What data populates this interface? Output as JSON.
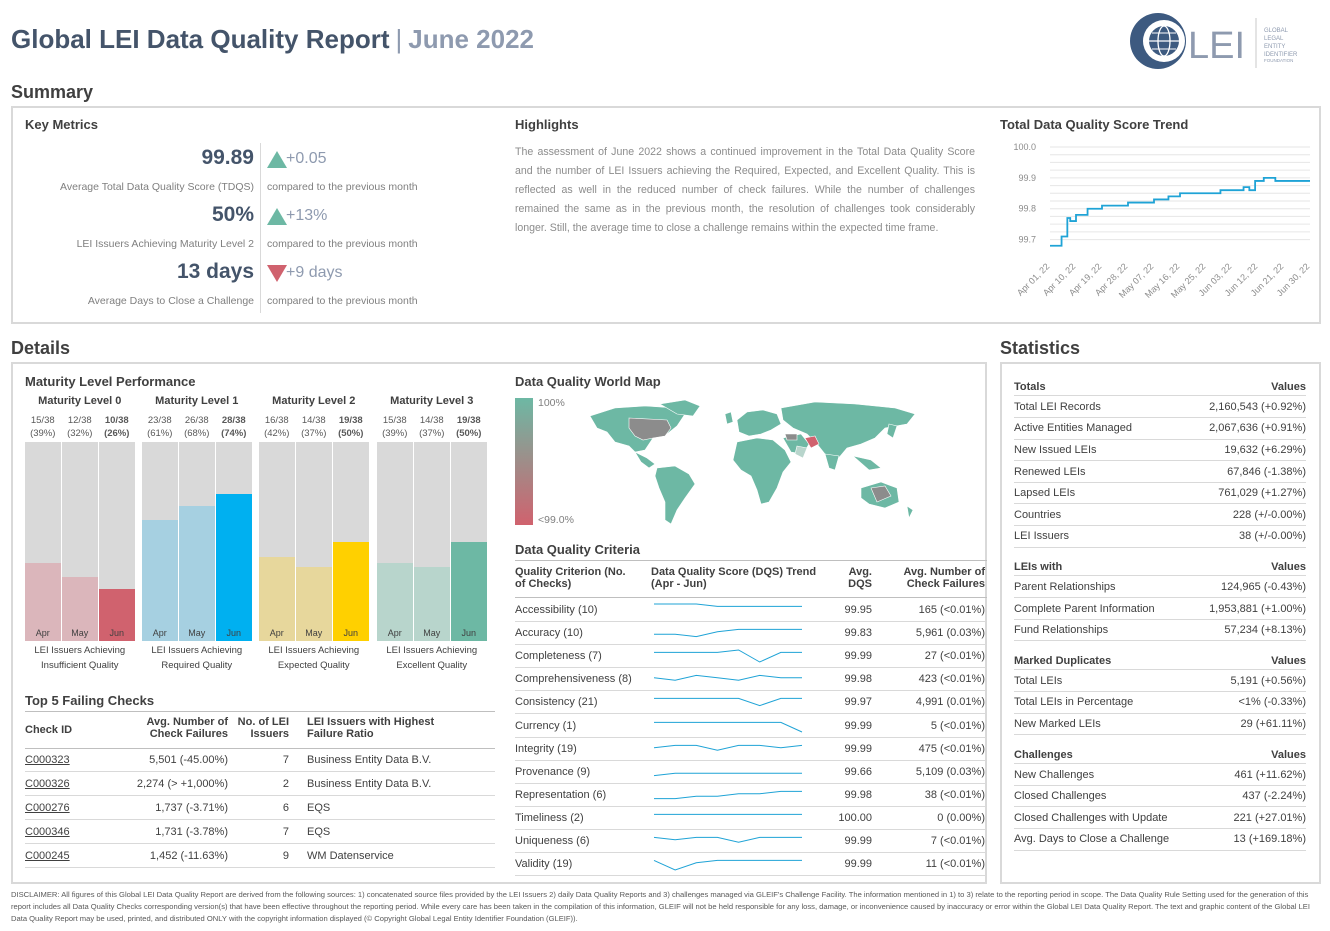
{
  "header": {
    "title": "Global LEI Data Quality Report",
    "separator": "|",
    "month": "June 2022",
    "logo_text": "LEI",
    "logo_small": [
      "GLOBAL",
      "LEGAL",
      "ENTITY",
      "IDENTIFIER",
      "FOUNDATION"
    ]
  },
  "summary": {
    "heading": "Summary",
    "key_metrics": {
      "title": "Key Metrics",
      "items": [
        {
          "value": "99.89",
          "label": "Average Total Data Quality Score (TDQS)",
          "delta": "+0.05",
          "direction": "up",
          "compare": "compared to the previous month"
        },
        {
          "value": "50%",
          "label": "LEI Issuers Achieving Maturity Level 2",
          "delta": "+13%",
          "direction": "up",
          "compare": "compared to the previous month"
        },
        {
          "value": "13 days",
          "label": "Average Days to Close a Challenge",
          "delta": "+9 days",
          "direction": "down",
          "compare": "compared to the previous month"
        }
      ]
    },
    "highlights": {
      "title": "Highlights",
      "text": "The assessment of June 2022 shows a continued improvement in the Total Data Quality Score and the number of LEI Issuers achieving the Required, Expected, and Excellent Quality. This is reflected as well in the reduced number of check failures. While the number of challenges remained the same as in the previous month, the resolution of challenges took considerably longer. Still, the average time to close a challenge remains within the expected time frame."
    },
    "trend": {
      "title": "Total Data Quality Score Trend"
    }
  },
  "details": {
    "heading": "Details",
    "maturity": {
      "title": "Maturity Level Performance",
      "levels": [
        {
          "name": "Maturity Level 0",
          "caption": "LEI Issuers Achieving Insufficient Quality",
          "months": [
            {
              "m": "Apr",
              "frac": "15/38",
              "pct": "(39%)",
              "value": 0.39
            },
            {
              "m": "May",
              "frac": "12/38",
              "pct": "(32%)",
              "value": 0.32
            },
            {
              "m": "Jun",
              "frac": "10/38",
              "pct": "(26%)",
              "value": 0.26
            }
          ]
        },
        {
          "name": "Maturity Level 1",
          "caption": "LEI Issuers Achieving Required Quality",
          "months": [
            {
              "m": "Apr",
              "frac": "23/38",
              "pct": "(61%)",
              "value": 0.61
            },
            {
              "m": "May",
              "frac": "26/38",
              "pct": "(68%)",
              "value": 0.68
            },
            {
              "m": "Jun",
              "frac": "28/38",
              "pct": "(74%)",
              "value": 0.74
            }
          ]
        },
        {
          "name": "Maturity Level 2",
          "caption": "LEI Issuers Achieving Expected Quality",
          "months": [
            {
              "m": "Apr",
              "frac": "16/38",
              "pct": "(42%)",
              "value": 0.42
            },
            {
              "m": "May",
              "frac": "14/38",
              "pct": "(37%)",
              "value": 0.37
            },
            {
              "m": "Jun",
              "frac": "19/38",
              "pct": "(50%)",
              "value": 0.5
            }
          ]
        },
        {
          "name": "Maturity Level 3",
          "caption": "LEI Issuers Achieving Excellent Quality",
          "months": [
            {
              "m": "Apr",
              "frac": "15/38",
              "pct": "(39%)",
              "value": 0.39
            },
            {
              "m": "May",
              "frac": "14/38",
              "pct": "(37%)",
              "value": 0.37
            },
            {
              "m": "Jun",
              "frac": "19/38",
              "pct": "(50%)",
              "value": 0.5
            }
          ]
        }
      ],
      "colors": [
        [
          "#dbb6bb",
          "#dbb6bb",
          "#d0626e"
        ],
        [
          "#a6d0e1",
          "#a6d0e1",
          "#00b0f0"
        ],
        [
          "#e7d79c",
          "#e7d79c",
          "#ffd000"
        ],
        [
          "#b8d5cc",
          "#b8d5cc",
          "#6db8a4"
        ]
      ]
    },
    "failing": {
      "title": "Top 5 Failing Checks",
      "headers": [
        "Check ID",
        "Avg. Number of Check Failures",
        "No. of LEI Issuers",
        "LEI Issuers with Highest Failure Ratio"
      ],
      "rows": [
        {
          "id": "C000323",
          "avg": "5,501 (-45.00%)",
          "n": "7",
          "issuer": "Business Entity Data B.V."
        },
        {
          "id": "C000326",
          "avg": "2,274 (> +1,000%)",
          "n": "2",
          "issuer": "Business Entity Data B.V."
        },
        {
          "id": "C000276",
          "avg": "1,737 (-3.71%)",
          "n": "6",
          "issuer": "EQS"
        },
        {
          "id": "C000346",
          "avg": "1,731 (-3.78%)",
          "n": "7",
          "issuer": "EQS"
        },
        {
          "id": "C000245",
          "avg": "1,452 (-11.63%)",
          "n": "9",
          "issuer": "WM Datenservice"
        }
      ]
    },
    "worldmap": {
      "title": "Data Quality World Map",
      "legend_top": "100%",
      "legend_bottom": "<99.0%"
    },
    "criteria": {
      "title": "Data Quality Criteria",
      "headers": [
        "Quality Criterion (No. of Checks)",
        "Data Quality Score (DQS) Trend (Apr - Jun)",
        "Avg. DQS",
        "Avg. Number of Check Failures"
      ],
      "rows": [
        {
          "name": "Accessibility (10)",
          "dqs": "99.95",
          "fail": "165 (<0.01%)"
        },
        {
          "name": "Accuracy (10)",
          "dqs": "99.83",
          "fail": "5,961 (0.03%)"
        },
        {
          "name": "Completeness (7)",
          "dqs": "99.99",
          "fail": "27 (<0.01%)"
        },
        {
          "name": "Comprehensiveness (8)",
          "dqs": "99.98",
          "fail": "423 (<0.01%)"
        },
        {
          "name": "Consistency (21)",
          "dqs": "99.97",
          "fail": "4,991 (0.01%)"
        },
        {
          "name": "Currency (1)",
          "dqs": "99.99",
          "fail": "5 (<0.01%)"
        },
        {
          "name": "Integrity (19)",
          "dqs": "99.99",
          "fail": "475 (<0.01%)"
        },
        {
          "name": "Provenance (9)",
          "dqs": "99.66",
          "fail": "5,109 (0.03%)"
        },
        {
          "name": "Representation (6)",
          "dqs": "99.98",
          "fail": "38 (<0.01%)"
        },
        {
          "name": "Timeliness (2)",
          "dqs": "100.00",
          "fail": "0 (0.00%)"
        },
        {
          "name": "Uniqueness (6)",
          "dqs": "99.99",
          "fail": "7 (<0.01%)"
        },
        {
          "name": "Validity (19)",
          "dqs": "99.99",
          "fail": "11 (<0.01%)"
        }
      ]
    }
  },
  "statistics": {
    "heading": "Statistics",
    "groups": [
      {
        "head": "Totals",
        "values_head": "Values",
        "rows": [
          [
            "Total LEI Records",
            "2,160,543 (+0.92%)"
          ],
          [
            "Active Entities Managed",
            "2,067,636 (+0.91%)"
          ],
          [
            "New Issued LEIs",
            "19,632 (+6.29%)"
          ],
          [
            "Renewed LEIs",
            "67,846 (-1.38%)"
          ],
          [
            "Lapsed LEIs",
            "761,029 (+1.27%)"
          ],
          [
            "Countries",
            "228 (+/-0.00%)"
          ],
          [
            "LEI Issuers",
            "38 (+/-0.00%)"
          ]
        ]
      },
      {
        "head": "LEIs with",
        "values_head": "Values",
        "rows": [
          [
            "Parent Relationships",
            "124,965 (-0.43%)"
          ],
          [
            "Complete Parent Information",
            "1,953,881 (+1.00%)"
          ],
          [
            "Fund Relationships",
            "57,234 (+8.13%)"
          ]
        ]
      },
      {
        "head": "Marked Duplicates",
        "values_head": "Values",
        "rows": [
          [
            "Total LEIs",
            "5,191 (+0.56%)"
          ],
          [
            "Total LEIs in Percentage",
            "<1% (-0.33%)"
          ],
          [
            "New Marked LEIs",
            "29 (+61.11%)"
          ]
        ]
      },
      {
        "head": "Challenges",
        "values_head": "Values",
        "rows": [
          [
            "New Challenges",
            "461 (+11.62%)"
          ],
          [
            "Closed Challenges",
            "437 (-2.24%)"
          ],
          [
            "Closed Challenges with Update",
            "221 (+27.01%)"
          ],
          [
            "Avg. Days to Close a Challenge",
            "13 (+169.18%)"
          ]
        ]
      }
    ]
  },
  "chart_data": {
    "type": "line",
    "title": "Total Data Quality Score Trend",
    "xlabel": "",
    "ylabel": "",
    "ylim": [
      99.65,
      100.0
    ],
    "yticks": [
      "99.7",
      "99.8",
      "99.9",
      "100.0"
    ],
    "xticks": [
      "Apr 01, 22",
      "Apr 10, 22",
      "Apr 19, 22",
      "Apr 28, 22",
      "May 07, 22",
      "May 16, 22",
      "May 25, 22",
      "Jun 03, 22",
      "Jun 12, 22",
      "Jun 21, 22",
      "Jun 30, 22"
    ],
    "x": [
      "Apr 01, 22",
      "Apr 04, 22",
      "Apr 05, 22",
      "Apr 07, 22",
      "Apr 08, 22",
      "Apr 10, 22",
      "Apr 12, 22",
      "Apr 14, 22",
      "Apr 19, 22",
      "Apr 22, 22",
      "Apr 28, 22",
      "May 02, 22",
      "May 07, 22",
      "May 12, 22",
      "May 16, 22",
      "May 20, 22",
      "May 25, 22",
      "May 30, 22",
      "Jun 03, 22",
      "Jun 07, 22",
      "Jun 09, 22",
      "Jun 11, 22",
      "Jun 14, 22",
      "Jun 18, 22",
      "Jun 21, 22",
      "Jun 30, 22"
    ],
    "values": [
      99.68,
      99.68,
      99.71,
      99.77,
      99.76,
      99.78,
      99.78,
      99.8,
      99.81,
      99.81,
      99.82,
      99.82,
      99.83,
      99.84,
      99.85,
      99.85,
      99.85,
      99.86,
      99.86,
      99.87,
      99.86,
      99.89,
      99.9,
      99.89,
      99.89,
      99.89
    ],
    "color": "#1fa3d6",
    "grid": true
  }
}
